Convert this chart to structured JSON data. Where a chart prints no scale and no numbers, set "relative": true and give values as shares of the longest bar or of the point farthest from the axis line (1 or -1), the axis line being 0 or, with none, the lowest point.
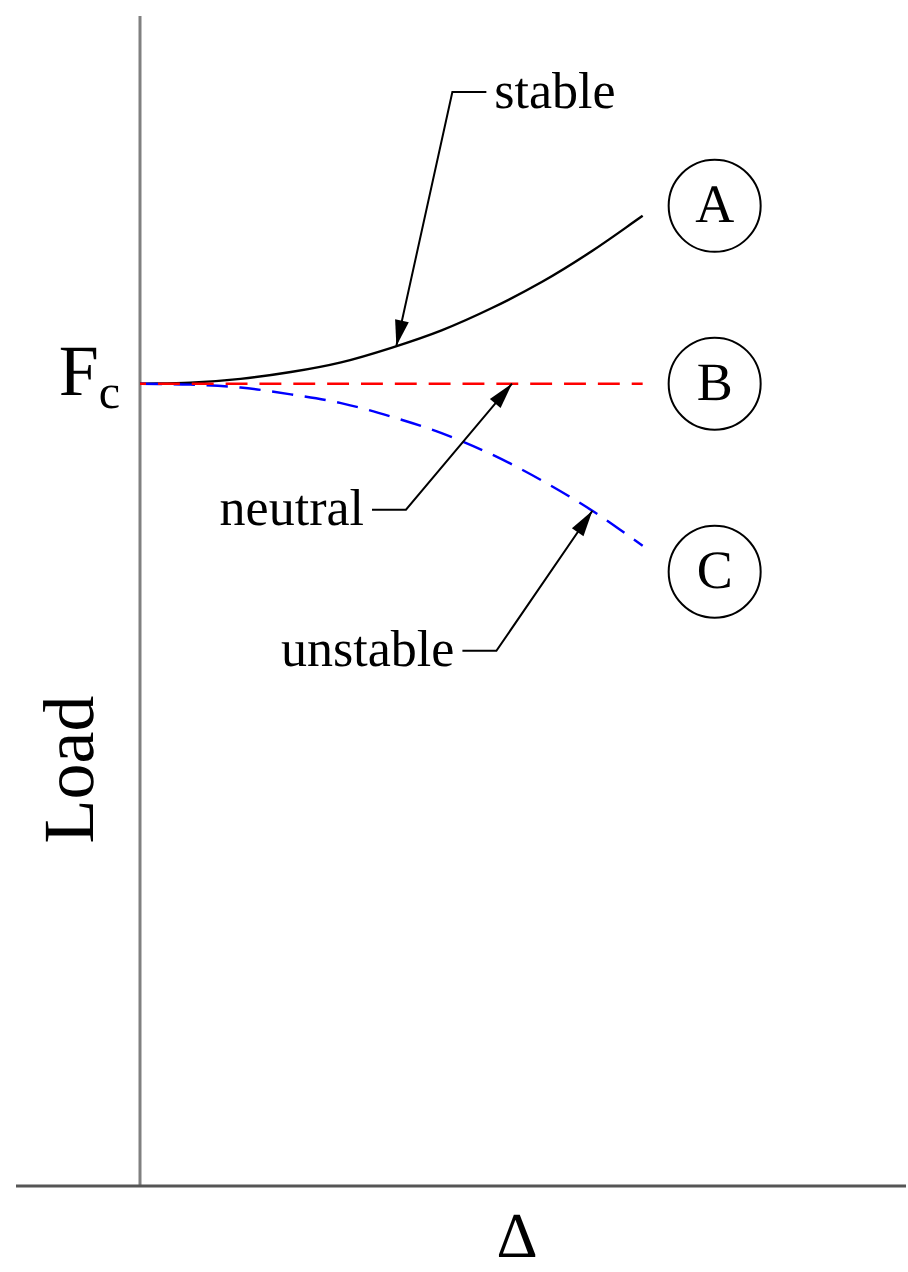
{
  "chart_data": {
    "type": "line",
    "relative": true,
    "xlabel": "Δ",
    "ylabel": "Load",
    "marker": "none",
    "categories": [
      null,
      null,
      null,
      null,
      null,
      null,
      null,
      null,
      null,
      null,
      null,
      null,
      null,
      null,
      null,
      null
    ],
    "series": [
      {
        "name": "A",
        "color": "#000000",
        "line_style": "solid",
        "values": [
          0.827,
          0.828,
          0.832,
          0.839,
          0.849,
          0.864,
          0.882,
          0.905,
          0.932,
          0.964,
          1,
          null,
          null,
          null,
          null,
          null
        ]
      },
      {
        "name": "B",
        "color": "#ff0000",
        "line_style": "dashed",
        "values": [
          0.827,
          0.827,
          0.827,
          0.827,
          0.827,
          0.827,
          0.827,
          0.827,
          0.827,
          0.827,
          0.827,
          null,
          null,
          null,
          null,
          null
        ]
      },
      {
        "name": "C",
        "color": "#0000ff",
        "line_style": "dashed",
        "values": [
          0.827,
          0.826,
          0.823,
          0.816,
          0.807,
          0.793,
          0.776,
          0.754,
          0.727,
          0.696,
          0.66,
          null,
          null,
          null,
          null,
          null
        ]
      }
    ],
    "annotations": [
      "stable",
      "neutral",
      "unstable",
      "F$_{c}$"
    ]
  }
}
